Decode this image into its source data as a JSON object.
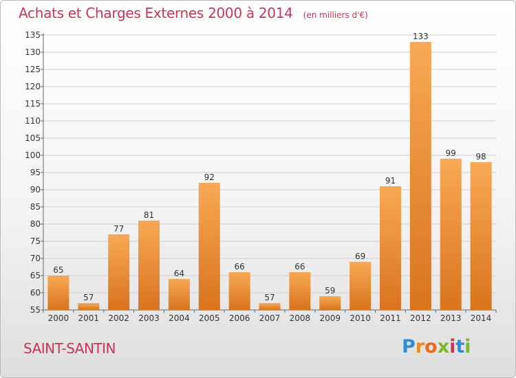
{
  "title": "Achats et Charges Externes 2000 à 2014",
  "unit": "(en milliers d'€)",
  "commune": "SAINT-SANTIN",
  "logo": {
    "text": "Proxiti",
    "colors": [
      "#2a8fd8",
      "#f08a1c",
      "#ec6a1e",
      "#7ab829",
      "#cc3355",
      "#2a8fd8",
      "#7ab829"
    ]
  },
  "colors": {
    "bar_light": "#f8a954",
    "bar_dark": "#d9731e",
    "accent": "#cc3355"
  },
  "chart_data": {
    "type": "bar",
    "categories": [
      "2000",
      "2001",
      "2002",
      "2003",
      "2004",
      "2005",
      "2006",
      "2007",
      "2008",
      "2009",
      "2010",
      "2011",
      "2012",
      "2013",
      "2014"
    ],
    "values": [
      65,
      57,
      77,
      81,
      64,
      92,
      66,
      57,
      66,
      59,
      69,
      91,
      133,
      99,
      98
    ],
    "ylim": [
      55,
      135
    ],
    "yticks": [
      55,
      60,
      65,
      70,
      75,
      80,
      85,
      90,
      95,
      100,
      105,
      110,
      115,
      120,
      125,
      130,
      135
    ],
    "grid": true
  }
}
